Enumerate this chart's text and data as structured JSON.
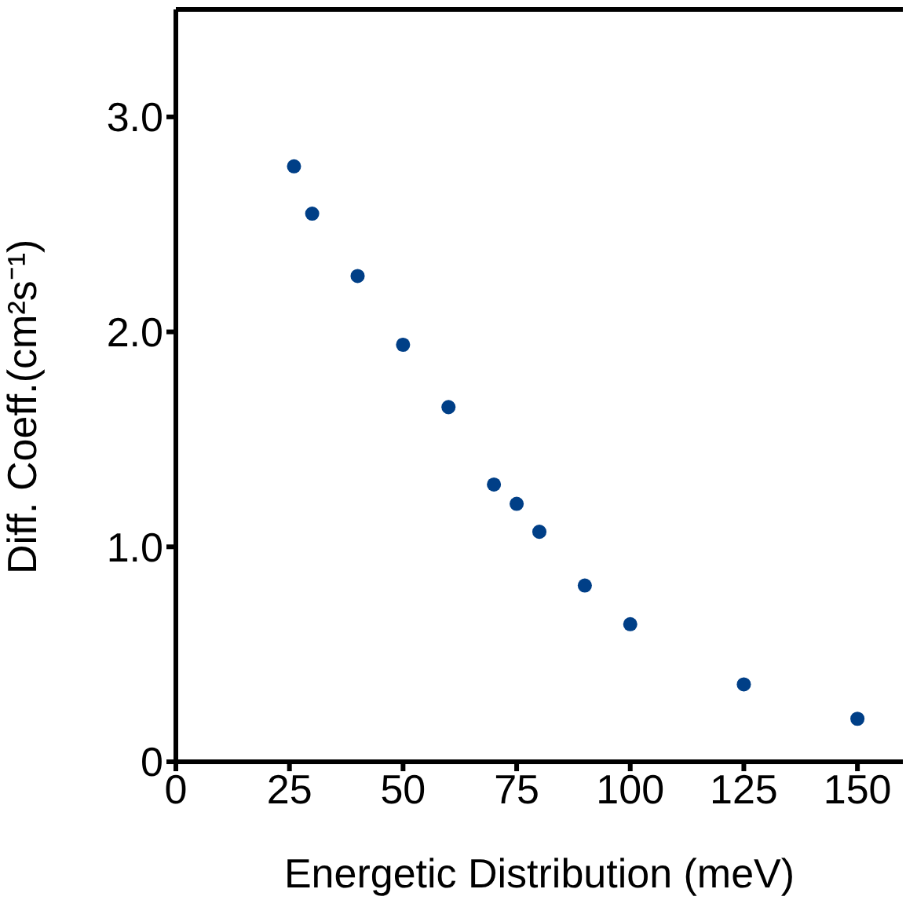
{
  "chart_data": {
    "type": "scatter",
    "xlabel": "Energetic Distribution (meV)",
    "ylabel": "Diff. Coeff.(cm²s⁻¹)",
    "x": [
      26,
      30,
      40,
      50,
      60,
      70,
      75,
      80,
      90,
      100,
      125,
      150
    ],
    "values": [
      2.77,
      2.55,
      2.26,
      1.94,
      1.65,
      1.29,
      1.2,
      1.07,
      0.82,
      0.64,
      0.36,
      0.2
    ],
    "color": "#003f87",
    "marker": "circle",
    "xlim": [
      0,
      160
    ],
    "xticks": [
      0,
      25,
      50,
      75,
      100,
      125,
      150
    ],
    "ylim": [
      0,
      3.5
    ],
    "yticks": [
      0,
      {
        "value": 1,
        "label": "1.0"
      },
      {
        "value": 2,
        "label": "2.0"
      },
      {
        "value": 3,
        "label": "3.0"
      }
    ],
    "grid": false
  }
}
